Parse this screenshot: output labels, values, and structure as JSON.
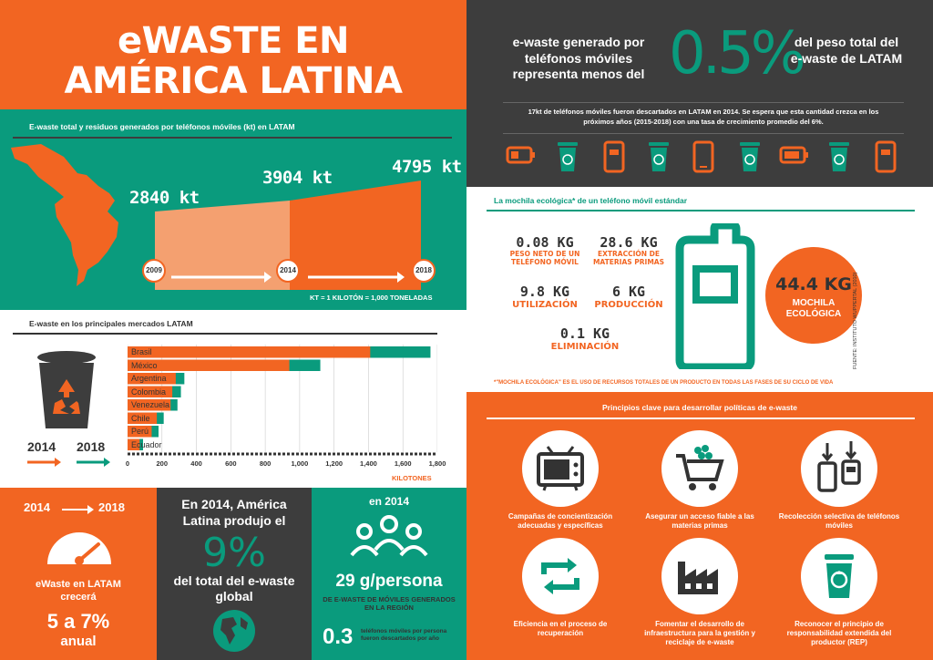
{
  "title_line1": "eWASTE EN",
  "title_line2": "AMÉRICA LATINA",
  "top_right": {
    "left_text": "e-waste generado por teléfonos móviles representa menos del",
    "big_value": "0.5%",
    "right_text": "del peso total del e-waste de LATAM",
    "note": "17kt de teléfonos móviles fueron descartados en LATAM en 2014. Se espera que esta cantidad crezca en los próximos años (2015-2018) con una tasa de crecimiento promedio del 6%."
  },
  "growth": {
    "header": "E-waste total y residuos generados por teléfonos móviles (kt) en LATAM",
    "values": [
      "2840 kt",
      "3904 kt",
      "4795 kt"
    ],
    "years": [
      "2009",
      "2014",
      "2018"
    ],
    "footnote": "KT = 1 KILOTÓN = 1,000 TONELADAS"
  },
  "mochila": {
    "header": "La mochila ecológica* de un teléfono móvil estándar",
    "items": [
      {
        "value": "0.08 KG",
        "label": "PESO NETO DE UN TELÉFONO MÓVIL"
      },
      {
        "value": "28.6 KG",
        "label": "EXTRACCIÓN DE MATERIAS PRIMAS"
      },
      {
        "value": "9.8 KG",
        "label": "UTILIZACIÓN"
      },
      {
        "value": "6 KG",
        "label": "PRODUCCIÓN"
      },
      {
        "value": "0.1 KG",
        "label": "ELIMINACIÓN"
      }
    ],
    "total_value": "44.4 KG",
    "total_label": "MOCHILA ECOLÓGICA",
    "source": "FUENTE: INSTITUTO WUPPERTAL (2010)",
    "footnote": "*\"MOCHILA ECOLÓGICA\" ES EL USO DE RECURSOS TOTALES DE UN PRODUCTO EN TODAS LAS FASES DE SU CICLO DE VIDA"
  },
  "markets": {
    "header": "E-waste en los principales mercados LATAM",
    "year_a": "2014",
    "year_b": "2018",
    "xlabel": "KILOTONES"
  },
  "chart_data": {
    "type": "bar",
    "categories": [
      "Brasil",
      "México",
      "Argentina",
      "Colombia",
      "Venezuela",
      "Chile",
      "Perú",
      "Ecuador"
    ],
    "series": [
      {
        "name": "2014",
        "values": [
          1410,
          940,
          280,
          260,
          250,
          170,
          140,
          70
        ]
      },
      {
        "name": "2018",
        "values": [
          1760,
          1120,
          330,
          310,
          290,
          210,
          180,
          90
        ]
      }
    ],
    "xticks": [
      "0",
      "200",
      "400",
      "600",
      "800",
      "1,000",
      "1,200",
      "1,400",
      "1,600",
      "1,800"
    ],
    "xlim": [
      0,
      1800
    ],
    "xlabel": "KILOTONES"
  },
  "bottom": {
    "growth_from": "2014",
    "growth_to": "2018",
    "growth_label": "eWaste en LATAM crecerá",
    "growth_value": "5 a 7%",
    "growth_unit": "anual",
    "share_text1": "En 2014, América Latina produjo el",
    "share_value": "9%",
    "share_text2": "del total del e-waste global",
    "per_year": "en 2014",
    "per_value": "29 g/persona",
    "per_label": "DE E-WASTE DE MÓVILES GENERADOS EN LA REGIÓN",
    "phones_value": "0.3",
    "phones_label": "teléfonos móviles por persona fueron descartados por año"
  },
  "principles": {
    "header": "Principios clave para desarrollar políticas de e-waste",
    "items": [
      "Campañas de concientización adecuadas y específicas",
      "Asegurar un acceso fiable a las materias primas",
      "Recolección selectiva de teléfonos móviles",
      "Eficiencia en el proceso de recuperación",
      "Fomentar el desarrollo de infraestructura para la gestión y reciclaje de e-waste",
      "Reconocer el principio de responsabilidad extendida del productor (REP)"
    ]
  },
  "colors": {
    "orange": "#f26522",
    "teal": "#0a9b7d",
    "dark": "#3d3d3d"
  }
}
